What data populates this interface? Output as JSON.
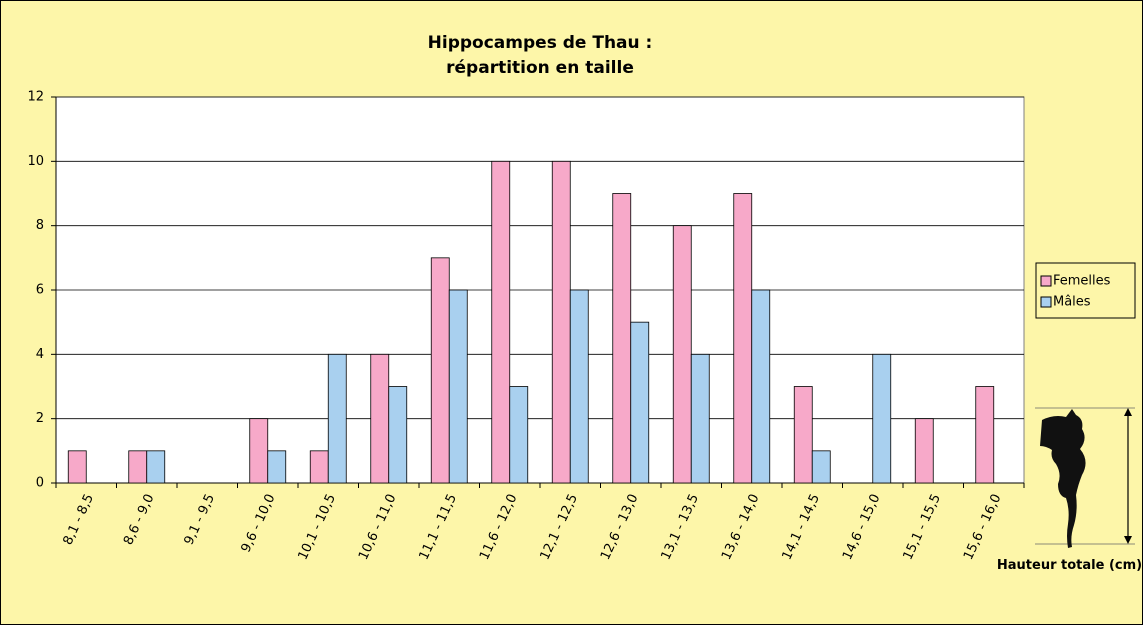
{
  "chart_data": {
    "type": "bar",
    "title": [
      "Hippocampes de Thau :",
      "répartition en taille"
    ],
    "categories": [
      "8,1 - 8,5",
      "8,6 - 9,0",
      "9,1 - 9,5",
      "9,6 - 10,0",
      "10,1 - 10,5",
      "10,6 - 11,0",
      "11,1 - 11,5",
      "11,6 - 12,0",
      "12,1 - 12,5",
      "12,6 - 13,0",
      "13,1 - 13,5",
      "13,6 - 14,0",
      "14,1 - 14,5",
      "14,6 - 15,0",
      "15,1 - 15,5",
      "15,6 - 16,0"
    ],
    "series": [
      {
        "name": "Femelles",
        "color": "#f7a9c9",
        "values": [
          1,
          1,
          0,
          2,
          1,
          4,
          7,
          10,
          10,
          9,
          8,
          9,
          3,
          0,
          2,
          3
        ]
      },
      {
        "name": "Mâles",
        "color": "#a9d0ef",
        "values": [
          0,
          1,
          0,
          1,
          4,
          3,
          6,
          3,
          6,
          5,
          4,
          6,
          1,
          4,
          0,
          0
        ]
      }
    ],
    "ylim": [
      0,
      12
    ],
    "yticks": [
      0,
      2,
      4,
      6,
      8,
      10,
      12
    ],
    "grid": true,
    "legend": "right",
    "x_label": "Hauteur totale (cm)"
  }
}
